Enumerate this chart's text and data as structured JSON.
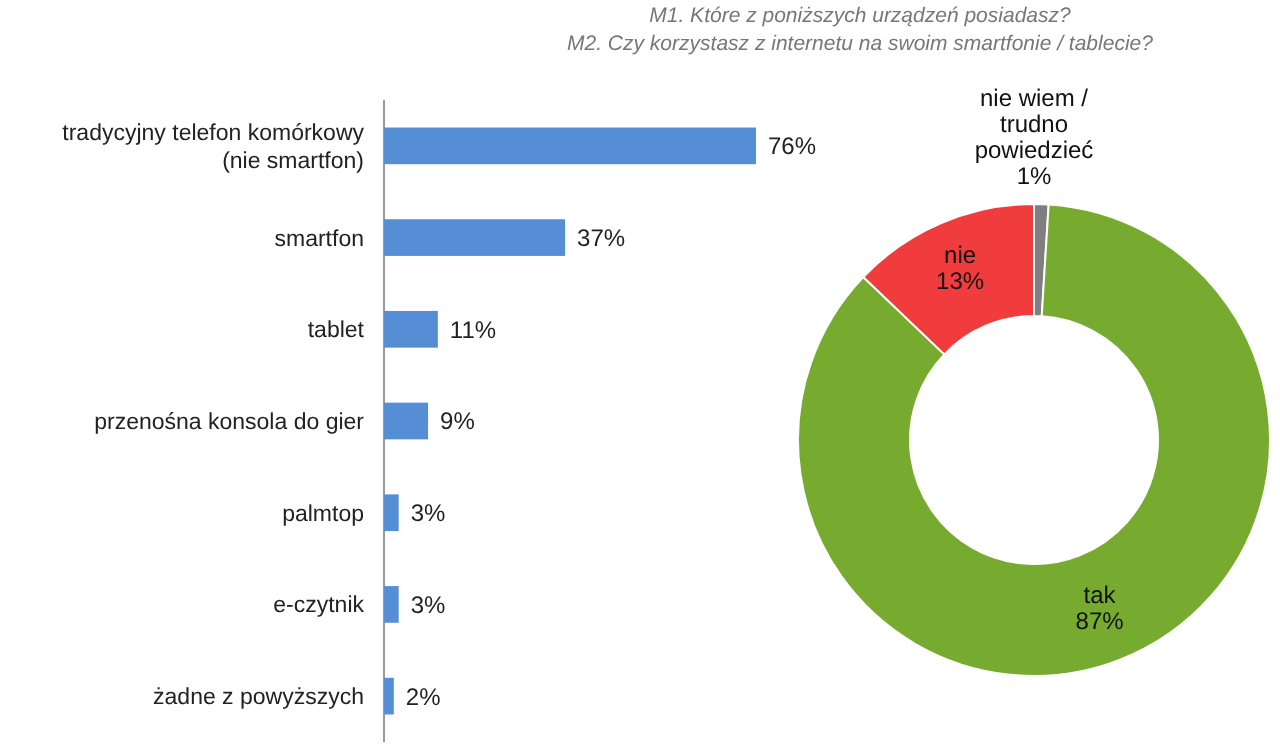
{
  "chart_data": [
    {
      "type": "bar",
      "orientation": "horizontal",
      "subtitle": "M1. Które z poniższych urządzeń posiadasz?",
      "categories": [
        "tradycyjny telefon komórkowy (nie smartfon)",
        "smartfon",
        "tablet",
        "przenośna konsola do gier",
        "palmtop",
        "e-czytnik",
        "żadne z powyższych"
      ],
      "values": [
        76,
        37,
        11,
        9,
        3,
        3,
        2
      ],
      "value_labels": [
        "76%",
        "37%",
        "11%",
        "9%",
        "3%",
        "3%",
        "2%"
      ],
      "color": "#558ed5"
    },
    {
      "type": "donut",
      "subtitle": "M2. Czy korzystasz z internetu na swoim smartfonie / tablecie?",
      "categories": [
        "nie wiem / trudno powiedzieć",
        "tak",
        "nie"
      ],
      "values": [
        1,
        87,
        13
      ],
      "value_labels": [
        "1%",
        "87%",
        "13%"
      ],
      "colors": [
        "#7f7f7f",
        "#77ab2f",
        "#f03c3c"
      ]
    }
  ]
}
